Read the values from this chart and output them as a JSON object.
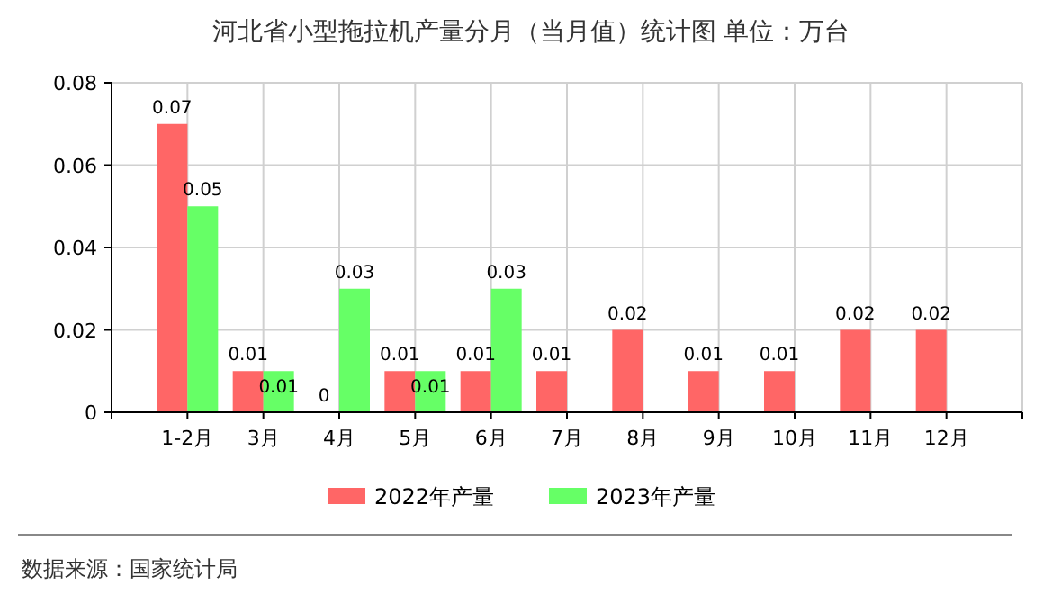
{
  "chart_data": {
    "type": "bar",
    "title": "河北省小型拖拉机产量分月（当月值）统计图 单位：万台",
    "categories": [
      "1-2月",
      "3月",
      "4月",
      "5月",
      "6月",
      "7月",
      "8月",
      "9月",
      "10月",
      "11月",
      "12月"
    ],
    "series": [
      {
        "name": "2022年产量",
        "color": "#ff6666",
        "values": [
          0.07,
          0.01,
          0,
          0.01,
          0.01,
          0.01,
          0.02,
          0.01,
          0.01,
          0.02,
          0.02
        ]
      },
      {
        "name": "2023年产量",
        "color": "#66ff66",
        "values": [
          0.05,
          0.01,
          0.03,
          0.01,
          0.03,
          null,
          null,
          null,
          null,
          null,
          null
        ]
      }
    ],
    "ylim": [
      0,
      0.08
    ],
    "yticks": [
      0,
      0.02,
      0.04,
      0.06,
      0.08
    ],
    "grid": true,
    "legend": "bottom",
    "data_labels": true,
    "annotations": [
      "数据来源：国家统计局"
    ]
  }
}
